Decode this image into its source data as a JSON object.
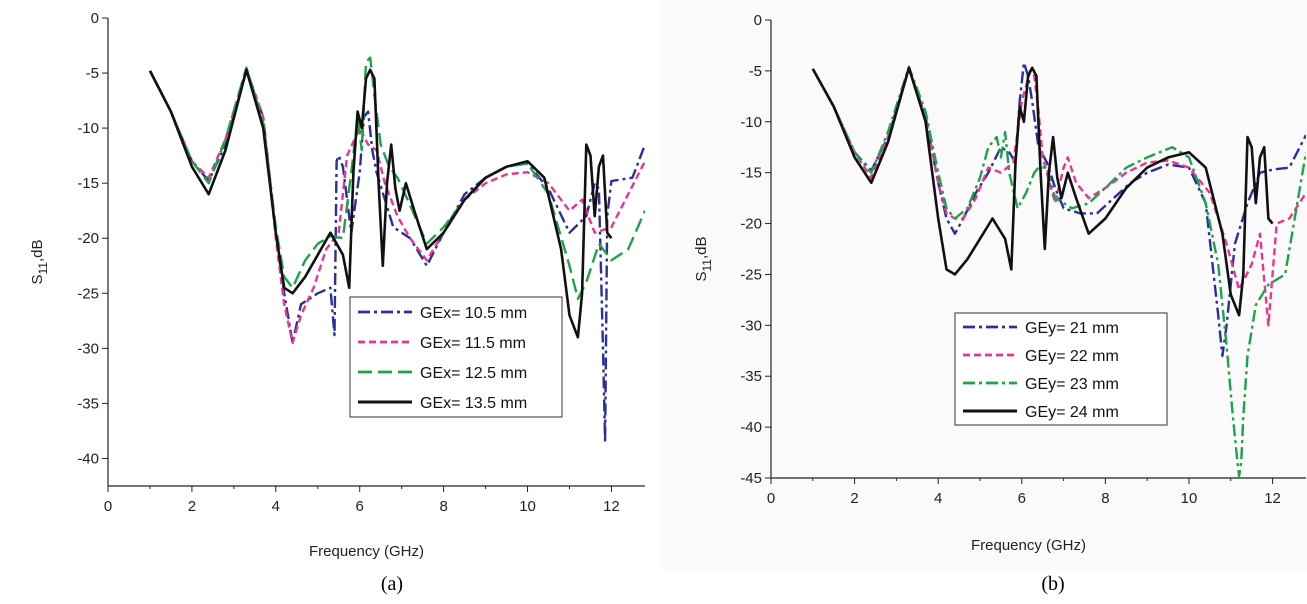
{
  "chart_data": [
    {
      "type": "line",
      "caption": "(a)",
      "xlabel": "Frequency (GHz)",
      "ylabel_main": "S",
      "ylabel_sub": "11",
      "ylabel_unit": ",dB",
      "xlim": [
        0,
        12.8
      ],
      "ylim": [
        -42.5,
        0
      ],
      "xticks": [
        0,
        2,
        4,
        6,
        8,
        10,
        12
      ],
      "yticks": [
        0,
        -5,
        -10,
        -15,
        -20,
        -25,
        -30,
        -35,
        -40
      ],
      "legend_position": "bottom-right",
      "series": [
        {
          "name": "GEx= 10.5 mm",
          "color": "#2b2f9e",
          "dash": "dashdot",
          "x": [
            1.0,
            1.5,
            2.0,
            2.4,
            2.8,
            3.3,
            3.7,
            4.0,
            4.2,
            4.4,
            4.6,
            5.0,
            5.3,
            5.4,
            5.45,
            5.5,
            5.6,
            5.8,
            6.0,
            6.1,
            6.2,
            6.3,
            6.4,
            6.6,
            6.8,
            7.2,
            7.6,
            8.0,
            8.5,
            9.0,
            9.5,
            10.0,
            10.5,
            11.0,
            11.4,
            11.6,
            11.7,
            11.8,
            11.85,
            11.9,
            12.0,
            12.5,
            12.8
          ],
          "y": [
            -4.8,
            -8.5,
            -13.0,
            -14.8,
            -11.5,
            -4.8,
            -9.0,
            -19.5,
            -25.0,
            -29.5,
            -26.0,
            -25.0,
            -24.5,
            -28.8,
            -13.0,
            -12.5,
            -13.5,
            -19.5,
            -14.0,
            -9.0,
            -8.5,
            -12.0,
            -14.0,
            -16.5,
            -19.0,
            -20.0,
            -22.5,
            -19.5,
            -16.0,
            -14.5,
            -13.5,
            -13.2,
            -15.5,
            -19.5,
            -18.0,
            -15.0,
            -15.5,
            -30.0,
            -38.5,
            -18.0,
            -14.8,
            -14.5,
            -11.5
          ]
        },
        {
          "name": "GEx= 11.5 mm",
          "color": "#e8358f",
          "dash": "dash",
          "x": [
            1.0,
            1.5,
            2.0,
            2.4,
            2.8,
            3.3,
            3.7,
            4.0,
            4.2,
            4.4,
            4.6,
            4.9,
            5.2,
            5.5,
            5.7,
            6.0,
            6.2,
            6.4,
            6.6,
            6.9,
            7.2,
            7.6,
            8.0,
            8.5,
            9.0,
            9.5,
            10.0,
            10.5,
            11.0,
            11.3,
            11.6,
            12.0,
            12.4,
            12.8
          ],
          "y": [
            -4.8,
            -8.5,
            -13.0,
            -14.5,
            -11.0,
            -4.6,
            -9.0,
            -20.0,
            -26.0,
            -29.5,
            -27.0,
            -24.5,
            -21.0,
            -19.5,
            -12.5,
            -10.0,
            -11.5,
            -12.0,
            -15.0,
            -18.0,
            -20.0,
            -22.0,
            -19.5,
            -16.5,
            -15.0,
            -14.2,
            -14.0,
            -15.0,
            -17.5,
            -16.5,
            -19.5,
            -19.0,
            -16.0,
            -13.0
          ]
        },
        {
          "name": "GEx= 12.5 mm",
          "color": "#1fa24a",
          "dash": "longdash",
          "x": [
            1.0,
            1.5,
            2.0,
            2.4,
            2.8,
            3.3,
            3.7,
            4.0,
            4.2,
            4.4,
            4.7,
            5.0,
            5.3,
            5.6,
            5.8,
            5.95,
            6.05,
            6.15,
            6.25,
            6.35,
            6.5,
            6.7,
            6.9,
            7.2,
            7.6,
            8.0,
            8.5,
            9.0,
            9.5,
            10.0,
            10.5,
            11.0,
            11.2,
            11.4,
            11.7,
            12.0,
            12.4,
            12.8
          ],
          "y": [
            -4.8,
            -8.5,
            -13.0,
            -15.0,
            -11.0,
            -4.5,
            -9.5,
            -19.0,
            -23.5,
            -24.5,
            -22.0,
            -20.5,
            -19.8,
            -20.0,
            -14.0,
            -9.0,
            -12.0,
            -4.0,
            -3.6,
            -7.0,
            -11.5,
            -13.5,
            -14.5,
            -17.0,
            -20.5,
            -19.0,
            -16.5,
            -14.5,
            -13.5,
            -13.2,
            -16.0,
            -22.5,
            -25.5,
            -24.0,
            -20.5,
            -22.0,
            -21.0,
            -17.5
          ]
        },
        {
          "name": "GEx= 13.5 mm",
          "color": "#111111",
          "dash": "solid",
          "x": [
            1.0,
            1.5,
            2.0,
            2.4,
            2.8,
            3.3,
            3.7,
            4.0,
            4.2,
            4.4,
            4.7,
            5.0,
            5.3,
            5.6,
            5.75,
            5.85,
            5.95,
            6.05,
            6.15,
            6.25,
            6.35,
            6.45,
            6.55,
            6.65,
            6.75,
            6.85,
            6.95,
            7.1,
            7.3,
            7.6,
            8.0,
            8.5,
            9.0,
            9.5,
            10.0,
            10.4,
            10.8,
            11.0,
            11.2,
            11.3,
            11.4,
            11.5,
            11.6,
            11.7,
            11.8,
            11.9,
            12.0
          ],
          "y": [
            -4.8,
            -8.5,
            -13.5,
            -16.0,
            -12.0,
            -4.7,
            -10.0,
            -19.5,
            -24.5,
            -25.0,
            -23.5,
            -21.5,
            -19.5,
            -21.5,
            -24.5,
            -14.0,
            -8.5,
            -10.0,
            -5.5,
            -4.7,
            -5.5,
            -15.0,
            -22.5,
            -15.0,
            -11.5,
            -15.5,
            -17.5,
            -15.0,
            -17.5,
            -21.0,
            -19.5,
            -16.5,
            -14.5,
            -13.5,
            -13.0,
            -14.5,
            -21.0,
            -27.0,
            -29.0,
            -25.0,
            -11.5,
            -12.5,
            -18.0,
            -13.5,
            -12.5,
            -19.5,
            -20.0
          ]
        }
      ]
    },
    {
      "type": "line",
      "caption": "(b)",
      "xlabel": "Frequency (GHz)",
      "ylabel_main": "S",
      "ylabel_sub": "11",
      "ylabel_unit": ",dB",
      "xlim": [
        0,
        12.8
      ],
      "ylim": [
        -45,
        0
      ],
      "xticks": [
        0,
        2,
        4,
        6,
        8,
        10,
        12
      ],
      "yticks": [
        0,
        -5,
        -10,
        -15,
        -20,
        -25,
        -30,
        -35,
        -40,
        -45
      ],
      "legend_position": "bottom-right",
      "series": [
        {
          "name": "GEy= 21 mm",
          "color": "#2b2f9e",
          "dash": "dashdot",
          "x": [
            1.0,
            1.5,
            2.0,
            2.4,
            2.8,
            3.3,
            3.7,
            4.0,
            4.2,
            4.4,
            4.6,
            4.9,
            5.2,
            5.5,
            5.7,
            5.85,
            5.95,
            6.05,
            6.15,
            6.25,
            6.4,
            6.6,
            6.8,
            7.0,
            7.4,
            7.8,
            8.2,
            8.6,
            9.0,
            9.5,
            10.0,
            10.4,
            10.7,
            10.8,
            10.9,
            11.1,
            11.4,
            11.7,
            12.0,
            12.4,
            12.8
          ],
          "y": [
            -4.8,
            -8.5,
            -13.0,
            -14.8,
            -11.5,
            -4.8,
            -9.5,
            -16.0,
            -19.5,
            -21.0,
            -19.5,
            -17.0,
            -15.0,
            -12.5,
            -13.0,
            -14.0,
            -8.0,
            -4.2,
            -5.5,
            -8.0,
            -12.5,
            -14.0,
            -16.5,
            -18.5,
            -19.0,
            -19.0,
            -17.5,
            -16.0,
            -15.0,
            -14.2,
            -14.5,
            -18.0,
            -29.0,
            -33.0,
            -30.0,
            -22.0,
            -18.0,
            -15.0,
            -14.7,
            -14.5,
            -11.3
          ]
        },
        {
          "name": "GEy= 22 mm",
          "color": "#e8358f",
          "dash": "dash",
          "x": [
            1.0,
            1.5,
            2.0,
            2.4,
            2.8,
            3.3,
            3.7,
            4.0,
            4.2,
            4.4,
            4.6,
            4.9,
            5.2,
            5.5,
            5.8,
            6.0,
            6.1,
            6.2,
            6.3,
            6.4,
            6.5,
            6.6,
            6.8,
            7.0,
            7.1,
            7.3,
            7.6,
            8.0,
            8.5,
            9.0,
            9.5,
            10.0,
            10.5,
            10.9,
            11.2,
            11.5,
            11.7,
            11.9,
            12.1,
            12.4,
            12.8
          ],
          "y": [
            -4.8,
            -8.5,
            -13.0,
            -15.5,
            -11.5,
            -4.7,
            -9.5,
            -16.0,
            -19.0,
            -19.5,
            -19.5,
            -17.5,
            -14.5,
            -15.0,
            -14.0,
            -8.0,
            -6.5,
            -5.0,
            -5.5,
            -9.0,
            -13.5,
            -15.0,
            -18.0,
            -14.5,
            -13.5,
            -16.0,
            -17.5,
            -16.5,
            -15.0,
            -14.0,
            -13.8,
            -14.5,
            -17.0,
            -22.0,
            -26.5,
            -24.0,
            -21.0,
            -30.0,
            -20.0,
            -19.5,
            -17.0
          ]
        },
        {
          "name": "GEy= 23 mm",
          "color": "#1fa24a",
          "dash": "dashdot",
          "x": [
            1.0,
            1.5,
            2.0,
            2.4,
            2.8,
            3.3,
            3.7,
            4.0,
            4.2,
            4.4,
            4.7,
            5.0,
            5.2,
            5.4,
            5.5,
            5.6,
            5.7,
            5.9,
            6.1,
            6.3,
            6.4,
            6.6,
            6.8,
            7.2,
            7.6,
            8.0,
            8.5,
            9.0,
            9.6,
            10.0,
            10.4,
            10.7,
            10.9,
            11.05,
            11.15,
            11.2,
            11.25,
            11.3,
            11.4,
            11.6,
            11.9,
            12.3,
            12.8
          ],
          "y": [
            -4.8,
            -8.5,
            -13.0,
            -15.0,
            -11.0,
            -4.6,
            -9.0,
            -15.0,
            -18.5,
            -19.5,
            -18.5,
            -15.5,
            -12.5,
            -11.5,
            -13.5,
            -11.0,
            -15.0,
            -18.5,
            -17.0,
            -15.0,
            -14.5,
            -14.5,
            -17.5,
            -18.5,
            -18.0,
            -16.5,
            -14.5,
            -13.5,
            -12.5,
            -13.5,
            -18.0,
            -24.0,
            -32.0,
            -39.0,
            -43.0,
            -44.8,
            -43.5,
            -39.0,
            -33.0,
            -28.0,
            -26.0,
            -25.0,
            -13.0
          ]
        },
        {
          "name": "GEy= 24 mm",
          "color": "#111111",
          "dash": "solid",
          "x": [
            1.0,
            1.5,
            2.0,
            2.4,
            2.8,
            3.3,
            3.7,
            4.0,
            4.2,
            4.4,
            4.7,
            5.0,
            5.3,
            5.6,
            5.75,
            5.85,
            5.95,
            6.05,
            6.15,
            6.25,
            6.35,
            6.45,
            6.55,
            6.65,
            6.75,
            6.85,
            6.95,
            7.1,
            7.3,
            7.6,
            8.0,
            8.5,
            9.0,
            9.5,
            10.0,
            10.4,
            10.8,
            11.0,
            11.2,
            11.3,
            11.4,
            11.5,
            11.6,
            11.7,
            11.8,
            11.9,
            12.0
          ],
          "y": [
            -4.8,
            -8.5,
            -13.5,
            -16.0,
            -12.0,
            -4.7,
            -10.0,
            -19.5,
            -24.5,
            -25.0,
            -23.5,
            -21.5,
            -19.5,
            -21.5,
            -24.5,
            -14.0,
            -8.5,
            -10.0,
            -5.5,
            -4.7,
            -5.5,
            -15.0,
            -22.5,
            -15.0,
            -11.5,
            -15.5,
            -17.5,
            -15.0,
            -17.5,
            -21.0,
            -19.5,
            -16.5,
            -14.5,
            -13.5,
            -13.0,
            -14.5,
            -21.0,
            -27.0,
            -29.0,
            -25.0,
            -11.5,
            -12.5,
            -18.0,
            -13.5,
            -12.5,
            -19.5,
            -20.0
          ]
        }
      ]
    }
  ]
}
